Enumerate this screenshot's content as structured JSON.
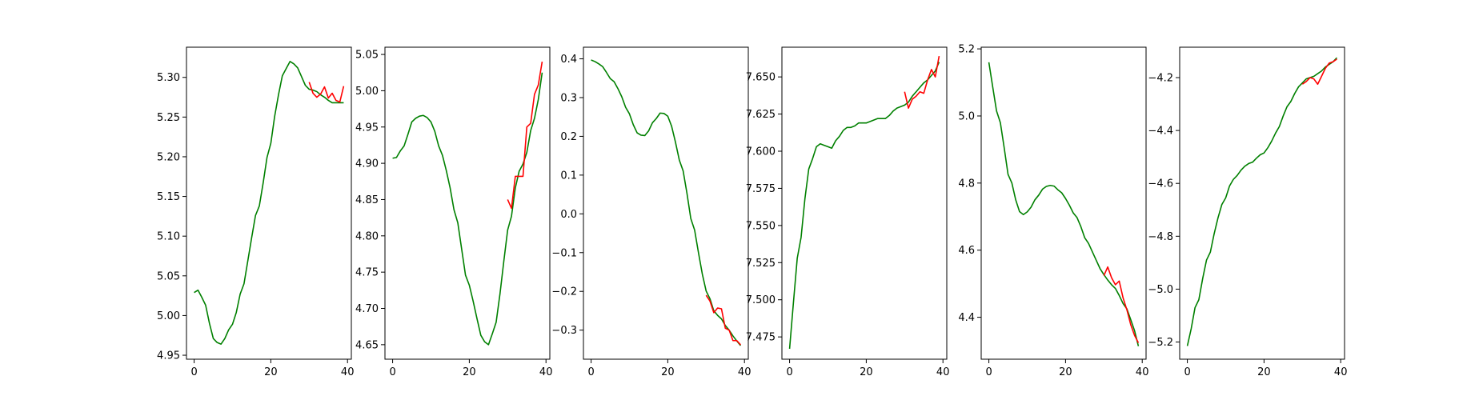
{
  "colors": {
    "green": "#008000",
    "red": "#ff0000",
    "axis": "#000000"
  },
  "chart_data": [
    {
      "type": "line",
      "xlim": [
        -2,
        41
      ],
      "ylim": [
        4.945,
        5.338
      ],
      "xticks": [
        0,
        20,
        40
      ],
      "xtick_labels": [
        "0",
        "20",
        "40"
      ],
      "yticks": [
        4.95,
        5.0,
        5.05,
        5.1,
        5.15,
        5.2,
        5.25,
        5.3
      ],
      "ytick_labels": [
        "4.95",
        "5.00",
        "5.05",
        "5.10",
        "5.15",
        "5.20",
        "5.25",
        "5.30"
      ],
      "series": [
        {
          "color": "#008000",
          "x_start": 0,
          "values": [
            5.029,
            5.032,
            5.023,
            5.013,
            4.99,
            4.971,
            4.966,
            4.964,
            4.971,
            4.982,
            4.989,
            5.004,
            5.027,
            5.04,
            5.069,
            5.098,
            5.126,
            5.138,
            5.167,
            5.199,
            5.217,
            5.251,
            5.278,
            5.302,
            5.311,
            5.32,
            5.317,
            5.312,
            5.301,
            5.29,
            5.285,
            5.284,
            5.282,
            5.278,
            5.275,
            5.271,
            5.268,
            5.268,
            5.268,
            5.268
          ]
        },
        {
          "color": "#ff0000",
          "x_start": 30,
          "values": [
            5.294,
            5.28,
            5.275,
            5.279,
            5.288,
            5.274,
            5.28,
            5.271,
            5.269,
            5.289
          ]
        }
      ]
    },
    {
      "type": "line",
      "xlim": [
        -2,
        41
      ],
      "ylim": [
        4.63,
        5.06
      ],
      "xticks": [
        0,
        20,
        40
      ],
      "xtick_labels": [
        "0",
        "20",
        "40"
      ],
      "yticks": [
        4.65,
        4.7,
        4.75,
        4.8,
        4.85,
        4.9,
        4.95,
        5.0,
        5.05
      ],
      "ytick_labels": [
        "4.65",
        "4.70",
        "4.75",
        "4.80",
        "4.85",
        "4.90",
        "4.95",
        "5.00",
        "5.05"
      ],
      "series": [
        {
          "color": "#008000",
          "x_start": 0,
          "values": [
            4.907,
            4.908,
            4.917,
            4.924,
            4.94,
            4.957,
            4.962,
            4.965,
            4.966,
            4.963,
            4.957,
            4.944,
            4.924,
            4.911,
            4.89,
            4.866,
            4.836,
            4.818,
            4.782,
            4.746,
            4.732,
            4.71,
            4.686,
            4.663,
            4.654,
            4.65,
            4.665,
            4.681,
            4.72,
            4.765,
            4.808,
            4.827,
            4.866,
            4.889,
            4.899,
            4.915,
            4.945,
            4.962,
            4.988,
            5.025
          ]
        },
        {
          "color": "#ff0000",
          "x_start": 30,
          "values": [
            4.85,
            4.838,
            4.882,
            4.882,
            4.882,
            4.95,
            4.955,
            4.995,
            5.008,
            5.04
          ]
        }
      ]
    },
    {
      "type": "line",
      "xlim": [
        -2,
        41
      ],
      "ylim": [
        -0.375,
        0.43
      ],
      "xticks": [
        0,
        20,
        40
      ],
      "xtick_labels": [
        "0",
        "20",
        "40"
      ],
      "yticks": [
        -0.3,
        -0.2,
        -0.1,
        0.0,
        0.1,
        0.2,
        0.3,
        0.4
      ],
      "ytick_labels": [
        "−0.3",
        "−0.2",
        "−0.1",
        "0.0",
        "0.1",
        "0.2",
        "0.3",
        "0.4"
      ],
      "series": [
        {
          "color": "#008000",
          "x_start": 0,
          "values": [
            0.397,
            0.393,
            0.387,
            0.38,
            0.365,
            0.349,
            0.341,
            0.323,
            0.302,
            0.275,
            0.258,
            0.23,
            0.209,
            0.203,
            0.202,
            0.214,
            0.235,
            0.246,
            0.26,
            0.259,
            0.252,
            0.226,
            0.185,
            0.139,
            0.111,
            0.053,
            -0.012,
            -0.042,
            -0.1,
            -0.155,
            -0.199,
            -0.219,
            -0.25,
            -0.262,
            -0.271,
            -0.288,
            -0.3,
            -0.315,
            -0.328,
            -0.34
          ]
        },
        {
          "color": "#ff0000",
          "x_start": 30,
          "values": [
            -0.21,
            -0.225,
            -0.255,
            -0.243,
            -0.245,
            -0.295,
            -0.3,
            -0.327,
            -0.327,
            -0.338
          ]
        }
      ]
    },
    {
      "type": "line",
      "xlim": [
        -2,
        41
      ],
      "ylim": [
        7.46,
        7.67
      ],
      "xticks": [
        0,
        20,
        40
      ],
      "xtick_labels": [
        "0",
        "20",
        "40"
      ],
      "yticks": [
        7.475,
        7.5,
        7.525,
        7.55,
        7.575,
        7.6,
        7.625,
        7.65
      ],
      "ytick_labels": [
        "7.475",
        "7.500",
        "7.525",
        "7.550",
        "7.575",
        "7.600",
        "7.625",
        "7.650"
      ],
      "series": [
        {
          "color": "#008000",
          "x_start": 0,
          "values": [
            7.467,
            7.498,
            7.528,
            7.542,
            7.568,
            7.588,
            7.595,
            7.603,
            7.605,
            7.604,
            7.603,
            7.602,
            7.607,
            7.61,
            7.614,
            7.616,
            7.616,
            7.617,
            7.619,
            7.619,
            7.619,
            7.62,
            7.621,
            7.622,
            7.622,
            7.622,
            7.624,
            7.627,
            7.629,
            7.63,
            7.631,
            7.633,
            7.637,
            7.64,
            7.643,
            7.646,
            7.648,
            7.651,
            7.654,
            7.66
          ]
        },
        {
          "color": "#ff0000",
          "x_start": 30,
          "values": [
            7.64,
            7.629,
            7.635,
            7.637,
            7.64,
            7.639,
            7.648,
            7.655,
            7.65,
            7.664
          ]
        }
      ]
    },
    {
      "type": "line",
      "xlim": [
        -2,
        41
      ],
      "ylim": [
        4.275,
        5.205
      ],
      "xticks": [
        0,
        20,
        40
      ],
      "xtick_labels": [
        "0",
        "20",
        "40"
      ],
      "yticks": [
        4.4,
        4.6,
        4.8,
        5.0,
        5.2
      ],
      "ytick_labels": [
        "4.4",
        "4.6",
        "4.8",
        "5.0",
        "5.2"
      ],
      "series": [
        {
          "color": "#008000",
          "x_start": 0,
          "values": [
            5.16,
            5.087,
            5.015,
            4.98,
            4.905,
            4.826,
            4.8,
            4.75,
            4.715,
            4.706,
            4.714,
            4.728,
            4.75,
            4.764,
            4.782,
            4.79,
            4.793,
            4.791,
            4.78,
            4.771,
            4.754,
            4.734,
            4.711,
            4.697,
            4.67,
            4.637,
            4.62,
            4.595,
            4.57,
            4.545,
            4.527,
            4.511,
            4.497,
            4.486,
            4.465,
            4.441,
            4.425,
            4.393,
            4.36,
            4.314
          ]
        },
        {
          "color": "#ff0000",
          "x_start": 30,
          "values": [
            4.524,
            4.55,
            4.518,
            4.497,
            4.508,
            4.458,
            4.422,
            4.378,
            4.346,
            4.324
          ]
        }
      ]
    },
    {
      "type": "line",
      "xlim": [
        -2,
        41
      ],
      "ylim": [
        -5.265,
        -4.085
      ],
      "xticks": [
        0,
        20,
        40
      ],
      "xtick_labels": [
        "0",
        "20",
        "40"
      ],
      "yticks": [
        -5.2,
        -5.0,
        -4.8,
        -4.6,
        -4.4,
        -4.2
      ],
      "ytick_labels": [
        "−5.2",
        "−5.0",
        "−4.8",
        "−4.6",
        "−4.4",
        "−4.2"
      ],
      "series": [
        {
          "color": "#008000",
          "x_start": 0,
          "values": [
            -5.215,
            -5.15,
            -5.07,
            -5.04,
            -4.96,
            -4.89,
            -4.86,
            -4.79,
            -4.73,
            -4.68,
            -4.655,
            -4.61,
            -4.585,
            -4.57,
            -4.55,
            -4.535,
            -4.525,
            -4.52,
            -4.505,
            -4.492,
            -4.485,
            -4.465,
            -4.44,
            -4.41,
            -4.385,
            -4.345,
            -4.31,
            -4.29,
            -4.26,
            -4.235,
            -4.22,
            -4.205,
            -4.2,
            -4.195,
            -4.185,
            -4.175,
            -4.16,
            -4.15,
            -4.14,
            -4.125
          ]
        },
        {
          "color": "#ff0000",
          "x_start": 30,
          "values": [
            -4.225,
            -4.215,
            -4.2,
            -4.205,
            -4.225,
            -4.195,
            -4.165,
            -4.145,
            -4.14,
            -4.13
          ]
        }
      ]
    }
  ]
}
